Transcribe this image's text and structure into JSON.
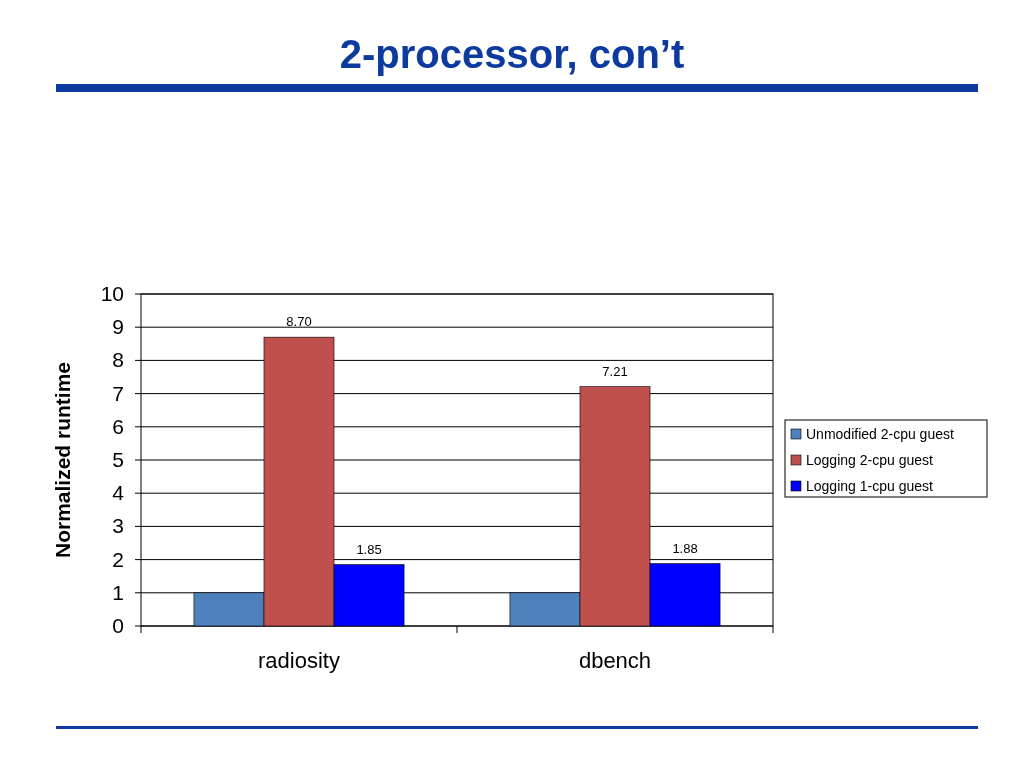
{
  "chart_data": {
    "type": "bar",
    "title": "2-processor, con’t",
    "ylabel": "Normalized runtime",
    "categories": [
      "radiosity",
      "dbench"
    ],
    "series": [
      {
        "name": "Unmodified 2-cpu guest",
        "color": "#4f81bd",
        "values": [
          1,
          1
        ]
      },
      {
        "name": "Logging 2-cpu guest",
        "color": "#c0504d",
        "values": [
          8.7,
          7.21
        ],
        "value_labels": [
          "8.70",
          "7.21"
        ]
      },
      {
        "name": "Logging 1-cpu guest",
        "color": "#0000ff",
        "values": [
          1.85,
          1.88
        ],
        "value_labels": [
          "1.85",
          "1.88"
        ]
      }
    ],
    "ylim": [
      0,
      10
    ],
    "yticks": [
      0,
      1,
      2,
      3,
      4,
      5,
      6,
      7,
      8,
      9,
      10
    ],
    "grid": "y",
    "legend": "right"
  }
}
